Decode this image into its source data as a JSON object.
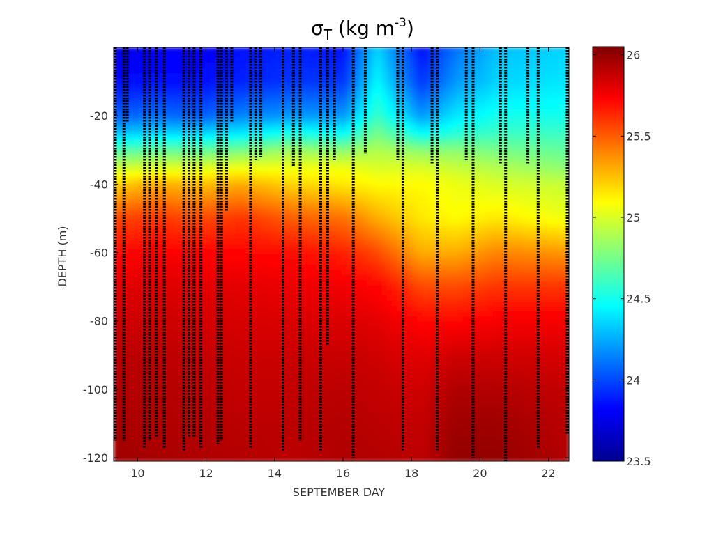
{
  "chart_data": {
    "type": "heatmap",
    "title": {
      "symbol": "σ",
      "subscript": "T",
      "units_prefix": " (kg m",
      "units_superscript": "-3",
      "units_suffix": ")"
    },
    "xlabel": "SEPTEMBER DAY",
    "ylabel": "DEPTH (m)",
    "xlim": [
      9.3,
      22.6
    ],
    "ylim": [
      -121,
      0
    ],
    "xticks": [
      10,
      12,
      14,
      16,
      18,
      20,
      22
    ],
    "yticks": [
      -20,
      -40,
      -60,
      -80,
      -100,
      -120
    ],
    "colorbar": {
      "range": [
        23.5,
        26.05
      ],
      "ticks": [
        26,
        25.5,
        25,
        24.5,
        24,
        23.5
      ],
      "colormap": "jet"
    },
    "field_samples": {
      "depths": [
        0,
        10,
        20,
        25,
        30,
        35,
        40,
        50,
        60,
        70,
        80,
        90,
        100,
        110,
        121
      ],
      "profiles": [
        {
          "day": 9.3,
          "sigma_t": [
            23.75,
            23.85,
            24.05,
            24.3,
            24.65,
            24.95,
            25.2,
            25.55,
            25.7,
            25.8,
            25.85,
            25.9,
            25.92,
            25.95,
            25.97
          ]
        },
        {
          "day": 10.5,
          "sigma_t": [
            23.8,
            23.85,
            24.1,
            24.35,
            24.7,
            25.0,
            25.3,
            25.6,
            25.75,
            25.82,
            25.86,
            25.9,
            25.92,
            25.93,
            25.95
          ]
        },
        {
          "day": 11.8,
          "sigma_t": [
            23.8,
            23.85,
            24.05,
            24.35,
            24.7,
            25.0,
            25.25,
            25.55,
            25.72,
            25.8,
            25.84,
            25.88,
            25.9,
            25.92,
            25.93
          ]
        },
        {
          "day": 13.0,
          "sigma_t": [
            23.85,
            23.9,
            24.15,
            24.4,
            24.75,
            25.05,
            25.3,
            25.6,
            25.72,
            25.8,
            25.83,
            25.86,
            25.88,
            25.9,
            25.92
          ]
        },
        {
          "day": 14.5,
          "sigma_t": [
            23.9,
            23.95,
            24.2,
            24.5,
            24.85,
            25.05,
            25.2,
            25.5,
            25.7,
            25.78,
            25.82,
            25.86,
            25.88,
            25.9,
            25.9
          ]
        },
        {
          "day": 16.0,
          "sigma_t": [
            23.85,
            23.95,
            24.2,
            24.45,
            24.8,
            25.05,
            25.15,
            25.45,
            25.65,
            25.76,
            25.82,
            25.87,
            25.9,
            25.92,
            25.93
          ]
        },
        {
          "day": 17.0,
          "sigma_t": [
            24.35,
            24.45,
            24.6,
            24.75,
            24.9,
            25.0,
            25.1,
            25.3,
            25.55,
            25.72,
            25.8,
            25.85,
            25.88,
            25.9,
            25.92
          ]
        },
        {
          "day": 18.3,
          "sigma_t": [
            23.85,
            23.95,
            24.2,
            24.45,
            24.8,
            25.0,
            25.1,
            25.15,
            25.3,
            25.55,
            25.72,
            25.8,
            25.85,
            25.88,
            25.9
          ]
        },
        {
          "day": 19.3,
          "sigma_t": [
            24.1,
            24.2,
            24.4,
            24.55,
            24.8,
            24.95,
            25.05,
            25.1,
            25.3,
            25.55,
            25.72,
            25.85,
            25.93,
            25.97,
            26.0
          ]
        },
        {
          "day": 20.5,
          "sigma_t": [
            24.3,
            24.35,
            24.5,
            24.6,
            24.75,
            24.9,
            25.0,
            25.15,
            25.4,
            25.6,
            25.75,
            25.85,
            25.92,
            25.97,
            26.0
          ]
        },
        {
          "day": 22.6,
          "sigma_t": [
            24.35,
            24.4,
            24.5,
            24.6,
            24.7,
            24.8,
            24.95,
            25.05,
            25.35,
            25.6,
            25.75,
            25.83,
            25.88,
            25.9,
            25.92
          ]
        }
      ]
    },
    "cast_profiles": [
      {
        "day": 9.35,
        "depth_max": -115
      },
      {
        "day": 9.6,
        "depth_max": -115
      },
      {
        "day": 9.7,
        "depth_max": -22
      },
      {
        "day": 10.2,
        "depth_max": -117
      },
      {
        "day": 10.35,
        "depth_max": -115
      },
      {
        "day": 10.55,
        "depth_max": -114
      },
      {
        "day": 10.78,
        "depth_max": -117
      },
      {
        "day": 11.35,
        "depth_max": -118
      },
      {
        "day": 11.5,
        "depth_max": -114
      },
      {
        "day": 11.65,
        "depth_max": -114
      },
      {
        "day": 11.85,
        "depth_max": -117
      },
      {
        "day": 12.35,
        "depth_max": -116
      },
      {
        "day": 12.45,
        "depth_max": -115
      },
      {
        "day": 12.6,
        "depth_max": -48
      },
      {
        "day": 12.75,
        "depth_max": -22
      },
      {
        "day": 13.3,
        "depth_max": -117
      },
      {
        "day": 13.45,
        "depth_max": -33
      },
      {
        "day": 13.6,
        "depth_max": -32
      },
      {
        "day": 14.25,
        "depth_max": -118
      },
      {
        "day": 14.55,
        "depth_max": -35
      },
      {
        "day": 14.75,
        "depth_max": -115
      },
      {
        "day": 15.35,
        "depth_max": -118
      },
      {
        "day": 15.55,
        "depth_max": -87
      },
      {
        "day": 15.75,
        "depth_max": -33
      },
      {
        "day": 16.3,
        "depth_max": -120
      },
      {
        "day": 16.65,
        "depth_max": -31
      },
      {
        "day": 17.6,
        "depth_max": -33
      },
      {
        "day": 17.75,
        "depth_max": -118
      },
      {
        "day": 18.6,
        "depth_max": -34
      },
      {
        "day": 18.75,
        "depth_max": -118
      },
      {
        "day": 19.6,
        "depth_max": -33
      },
      {
        "day": 19.8,
        "depth_max": -120
      },
      {
        "day": 20.6,
        "depth_max": -34
      },
      {
        "day": 20.75,
        "depth_max": -121
      },
      {
        "day": 21.4,
        "depth_max": -34
      },
      {
        "day": 21.7,
        "depth_max": -117
      },
      {
        "day": 22.55,
        "depth_max": -113
      }
    ]
  }
}
